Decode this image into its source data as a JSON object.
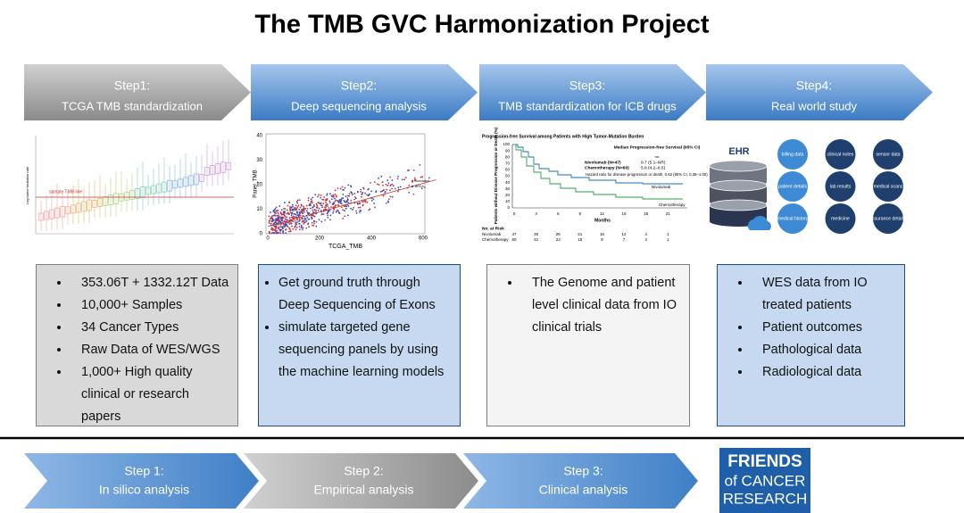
{
  "title": "The TMB GVC Harmonization Project",
  "steps": [
    {
      "label": "Step1:",
      "name": "TCGA TMB standardization"
    },
    {
      "label": "Step2:",
      "name": "Deep sequencing analysis"
    },
    {
      "label": "Step3:",
      "name": "TMB standardization for ICB drugs"
    },
    {
      "label": "Step4:",
      "name": "Real world study"
    }
  ],
  "panels": {
    "boxplot": {
      "line_label": "sample TMB line",
      "y_label": "Log tumor mutation rate"
    },
    "scatter": {
      "x_label": "TCGA_TMB",
      "y_label": "Panel_TMB",
      "xticks": [
        "0",
        "200",
        "400",
        "600"
      ],
      "yticks": [
        "0",
        "10",
        "20",
        "30",
        "40"
      ],
      "legend": [
        "Simulation",
        "BRCA"
      ]
    },
    "survival": {
      "title": "Progression-free Survival among Patients with High Tumor-Mutation Burden",
      "median_header": "Median Progression-free Survival (95% CI)",
      "median_unit": "mo",
      "groups": [
        {
          "name": "Nivolumab (N=47)",
          "median": "9.7 (5.1–NR)"
        },
        {
          "name": "Chemotherapy (N=60)",
          "median": "5.8 (4.2–8.5)"
        }
      ],
      "hazard": "Hazard ratio for disease progression or death, 0.62 (95% CI, 0.38–1.00)",
      "curve_labels": [
        "Nivolumab",
        "Chemotherapy"
      ],
      "y_label": "Patients without Disease Progression or Death (%)",
      "x_label": "Months",
      "yticks": [
        "0",
        "10",
        "20",
        "30",
        "40",
        "50",
        "60",
        "70",
        "80",
        "90",
        "100"
      ],
      "xticks": [
        "0",
        "3",
        "6",
        "9",
        "12",
        "15",
        "18",
        "21"
      ],
      "risk_header": "No. at Risk",
      "risk_rows": [
        {
          "name": "Nivolumab",
          "counts": [
            "47",
            "30",
            "26",
            "21",
            "16",
            "12",
            "4",
            "1"
          ]
        },
        {
          "name": "Chemotherapy",
          "counts": [
            "60",
            "42",
            "22",
            "15",
            "9",
            "7",
            "4",
            "1"
          ]
        }
      ]
    },
    "ehr": {
      "label": "EHR",
      "items": [
        "billing data",
        "clinical notes",
        "sensor data",
        "patient details",
        "lab results",
        "medical scans",
        "medical history",
        "medicine",
        "insurance details"
      ]
    }
  },
  "boxes": [
    {
      "items": [
        "353.06T + 1332.12T Data",
        "10,000+ Samples",
        "34 Cancer Types",
        "Raw Data of WES/WGS",
        "1,000+ High quality clinical or research papers"
      ]
    },
    {
      "items": [
        "Get ground truth through Deep Sequencing of Exons",
        "simulate targeted gene sequencing panels by using the machine learning models"
      ]
    },
    {
      "items": [
        "The Genome and patient level clinical data from IO clinical trials"
      ]
    },
    {
      "items": [
        "WES data from IO treated patients",
        "Patient outcomes",
        "Pathological data",
        "Radiological data"
      ]
    }
  ],
  "bottom_steps": [
    {
      "label": "Step 1:",
      "name": "In silico analysis"
    },
    {
      "label": "Step 2:",
      "name": "Empirical analysis"
    },
    {
      "label": "Step 3:",
      "name": "Clinical analysis"
    }
  ],
  "logo": [
    "FRIENDS",
    "of CANCER",
    "RESEARCH"
  ]
}
